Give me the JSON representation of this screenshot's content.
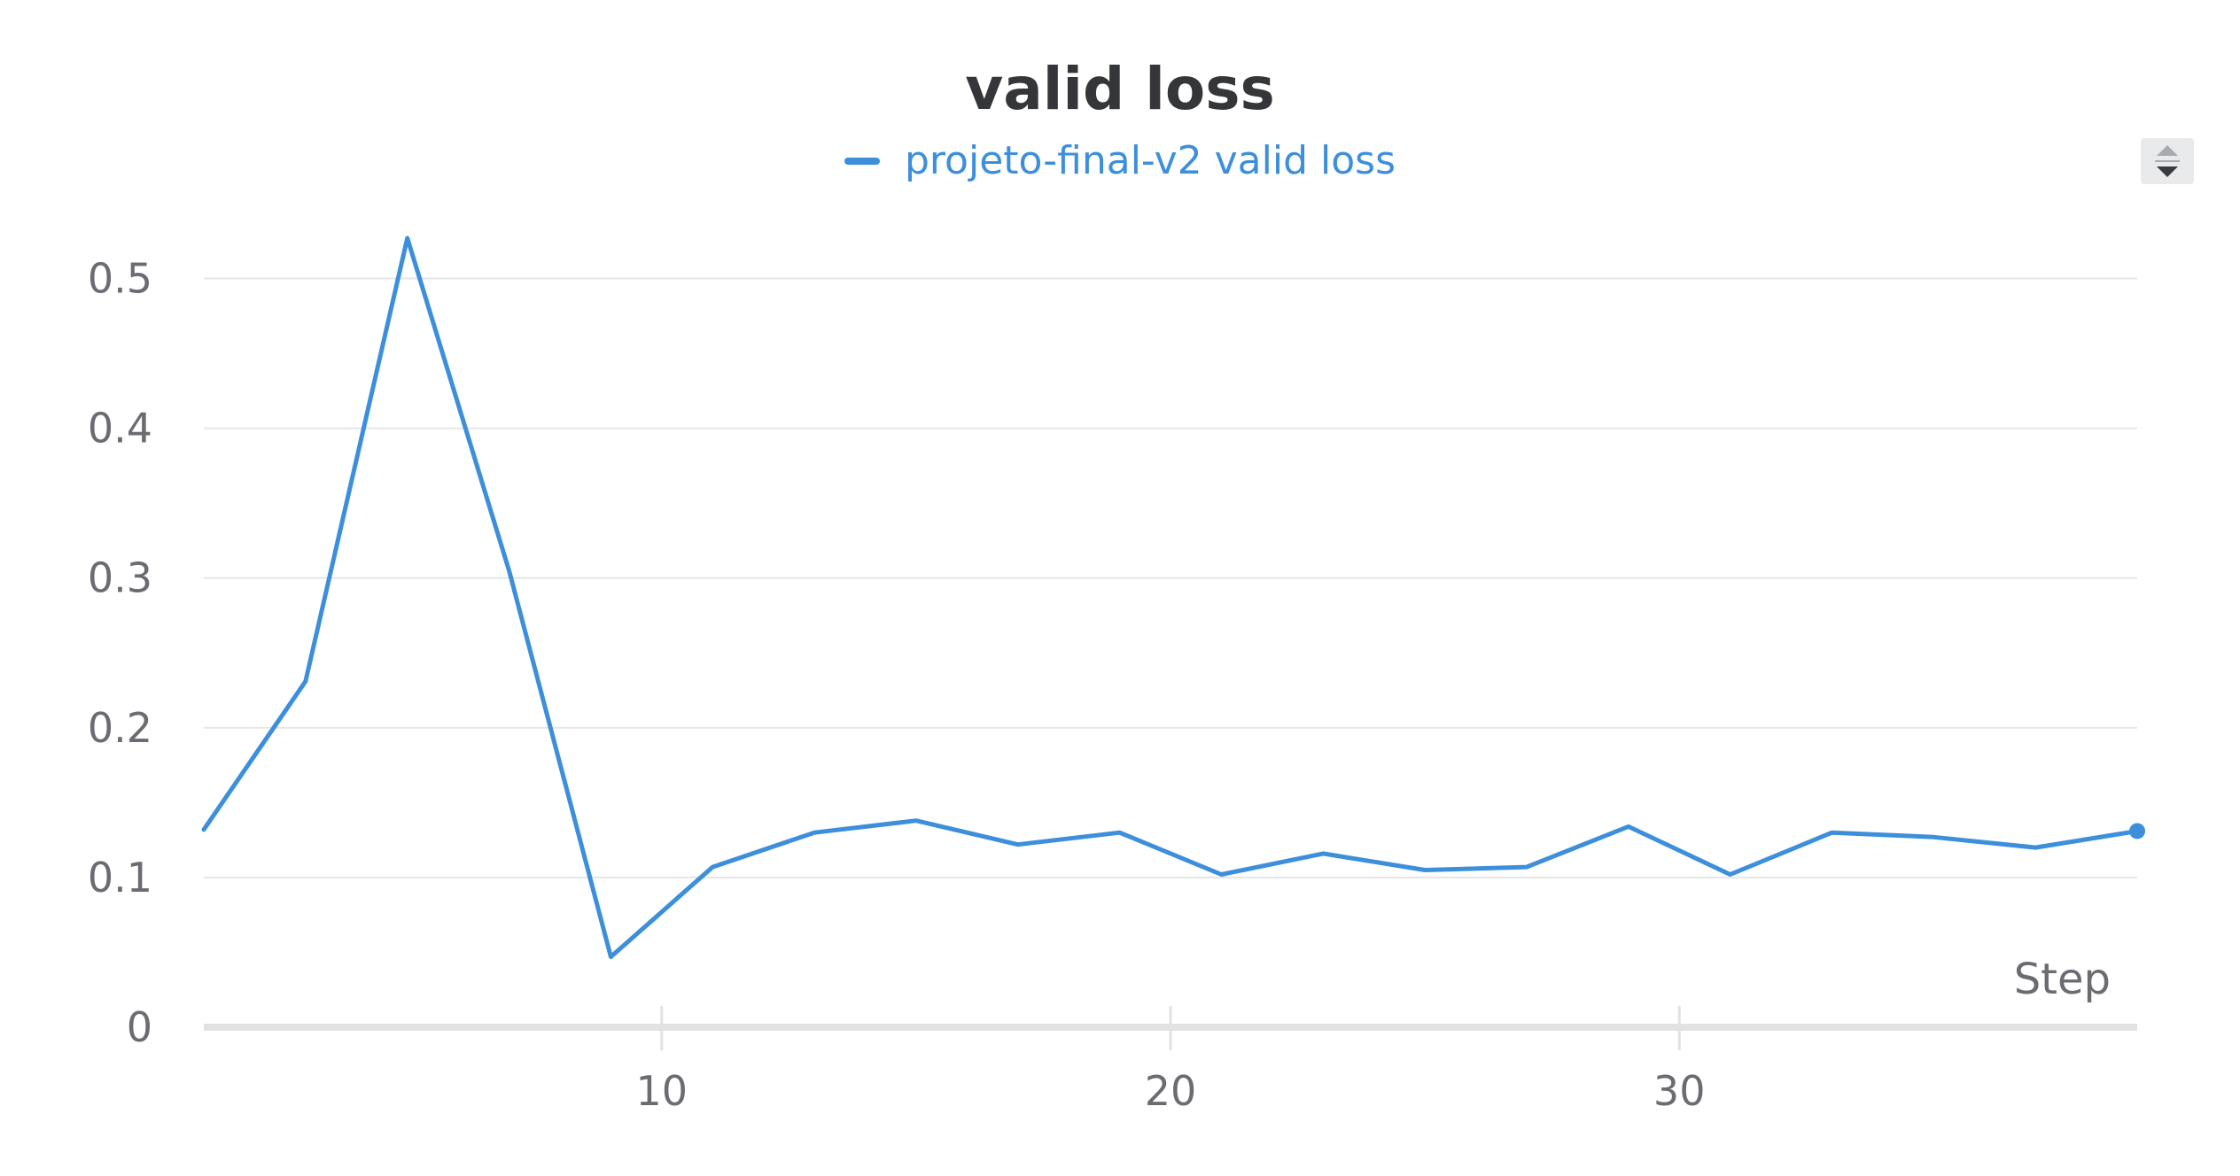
{
  "chart_data": {
    "type": "line",
    "title": "valid loss",
    "xlabel": "Step",
    "ylabel": "",
    "xlim": [
      1,
      39
    ],
    "ylim": [
      0,
      0.55
    ],
    "x_ticks": [
      10,
      20,
      30
    ],
    "y_ticks": [
      0,
      0.1,
      0.2,
      0.3,
      0.4,
      0.5
    ],
    "y_tick_labels": [
      "0",
      "0.1",
      "0.2",
      "0.3",
      "0.4",
      "0.5"
    ],
    "x_tick_labels": [
      "10",
      "20",
      "30"
    ],
    "grid": true,
    "legend_position": "top-center",
    "series": [
      {
        "name": "projeto-final-v2 valid loss",
        "color": "#3d8fdb",
        "x": [
          1,
          3,
          5,
          7,
          9,
          11,
          13,
          15,
          17,
          19,
          21,
          23,
          25,
          27,
          29,
          31,
          33,
          35,
          37,
          39
        ],
        "values": [
          0.132,
          0.231,
          0.527,
          0.305,
          0.047,
          0.107,
          0.13,
          0.138,
          0.122,
          0.13,
          0.102,
          0.116,
          0.105,
          0.107,
          0.134,
          0.102,
          0.13,
          0.127,
          0.12,
          0.131
        ]
      }
    ]
  },
  "colors": {
    "series": "#3d8fdb",
    "grid": "#e6e6e8",
    "axis": "#e2e2e4",
    "text": "#6b6c72",
    "title": "#35363a"
  },
  "controls": {
    "scroll_icon": "scroll-up-down-icon"
  }
}
